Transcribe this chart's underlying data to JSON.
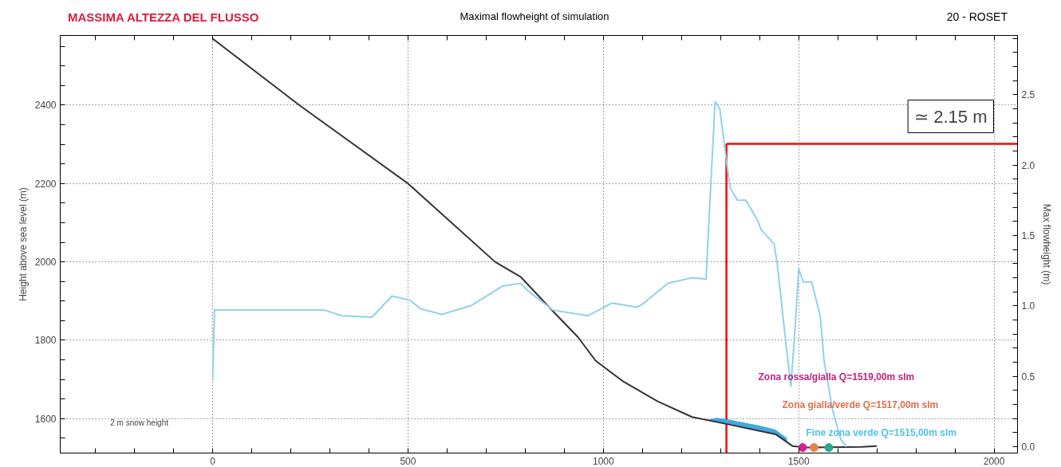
{
  "chart_data": {
    "type": "line",
    "title": "MASSIMA ALTEZZA DEL FLUSSO",
    "subtitle": "Maximal flowheight of simulation",
    "ylabel": "Height above sea level (m)",
    "y2label": "Max flowheight (m)",
    "xlim": [
      -390,
      2060
    ],
    "xticks": [
      {
        "value": -300,
        "label": null
      },
      {
        "value": -200,
        "label": null
      },
      {
        "value": -100,
        "label": null
      },
      0,
      {
        "value": 100,
        "label": null
      },
      {
        "value": 200,
        "label": null
      },
      {
        "value": 300,
        "label": null
      },
      {
        "value": 400,
        "label": null
      },
      500,
      {
        "value": 600,
        "label": null
      },
      {
        "value": 700,
        "label": null
      },
      {
        "value": 800,
        "label": null
      },
      {
        "value": 900,
        "label": null
      },
      1000,
      {
        "value": 1100,
        "label": null
      },
      {
        "value": 1200,
        "label": null
      },
      {
        "value": 1300,
        "label": null
      },
      {
        "value": 1400,
        "label": null
      },
      1500,
      {
        "value": 1600,
        "label": null
      },
      {
        "value": 1700,
        "label": null
      },
      {
        "value": 1800,
        "label": null
      },
      {
        "value": 1900,
        "label": null
      },
      2000
    ],
    "ylim": [
      1512,
      2578
    ],
    "yticks": [
      {
        "value": 1550,
        "label": null
      },
      1600,
      {
        "value": 1650,
        "label": null
      },
      {
        "value": 1700,
        "label": null
      },
      {
        "value": 1750,
        "label": null
      },
      1800,
      {
        "value": 1850,
        "label": null
      },
      {
        "value": 1900,
        "label": null
      },
      {
        "value": 1950,
        "label": null
      },
      2000,
      {
        "value": 2050,
        "label": null
      },
      {
        "value": 2100,
        "label": null
      },
      {
        "value": 2150,
        "label": null
      },
      2200,
      {
        "value": 2250,
        "label": null
      },
      {
        "value": 2300,
        "label": null
      },
      {
        "value": 2350,
        "label": null
      },
      2400,
      {
        "value": 2450,
        "label": null
      },
      {
        "value": 2500,
        "label": null
      },
      {
        "value": 2550,
        "label": null
      }
    ],
    "y2lim": [
      -0.045,
      2.92
    ],
    "y2ticks": [
      {
        "value": 0,
        "label": "0.0"
      },
      {
        "value": 0.1,
        "label": null
      },
      {
        "value": 0.2,
        "label": null
      },
      {
        "value": 0.3,
        "label": null
      },
      {
        "value": 0.4,
        "label": null
      },
      0.5,
      {
        "value": 0.6,
        "label": null
      },
      {
        "value": 0.7,
        "label": null
      },
      {
        "value": 0.8,
        "label": null
      },
      {
        "value": 0.9,
        "label": null
      },
      {
        "value": 1,
        "label": "1.0"
      },
      {
        "value": 1.1,
        "label": null
      },
      {
        "value": 1.2,
        "label": null
      },
      {
        "value": 1.3,
        "label": null
      },
      {
        "value": 1.4,
        "label": null
      },
      1.5,
      {
        "value": 1.6,
        "label": null
      },
      {
        "value": 1.7,
        "label": null
      },
      {
        "value": 1.8,
        "label": null
      },
      {
        "value": 1.9,
        "label": null
      },
      {
        "value": 2,
        "label": "2.0"
      },
      {
        "value": 2.1,
        "label": null
      },
      {
        "value": 2.2,
        "label": null
      },
      {
        "value": 2.3,
        "label": null
      },
      {
        "value": 2.4,
        "label": null
      },
      2.5,
      {
        "value": 2.6,
        "label": null
      },
      {
        "value": 2.7,
        "label": null
      },
      {
        "value": 2.8,
        "label": null
      },
      {
        "value": 2.9,
        "label": null
      }
    ],
    "grid": true,
    "series": [
      {
        "color": "#333333",
        "x": [
          0,
          222,
          500,
          723,
          788,
          871,
          935,
          980,
          1049,
          1139,
          1227,
          1316,
          1441,
          1484,
          1520,
          1661,
          1700
        ],
        "values": [
          2570,
          2400,
          2200,
          2000,
          1962,
          1874,
          1808,
          1748,
          1696,
          1644,
          1604,
          1586,
          1560,
          1530,
          1526,
          1528,
          1530
        ]
      },
      {
        "type": "area",
        "color": "#3fa9e0",
        "x": [
          1263,
          1290,
          1320,
          1360,
          1400,
          1440,
          1470
        ],
        "values": [
          1596,
          1602,
          1598,
          1590,
          1582,
          1572,
          1550
        ]
      },
      {
        "type": "line",
        "axis": "y2",
        "color": "#8fd3ea",
        "x": [
          0,
          5,
          286,
          331,
          408,
          459,
          505,
          532,
          586,
          660,
          696,
          741,
          788,
          810,
          871,
          961,
          988,
          1022,
          1086,
          1104,
          1165,
          1227,
          1263,
          1269,
          1286,
          1298,
          1324,
          1343,
          1365,
          1396,
          1404,
          1437,
          1445,
          1467,
          1480,
          1490,
          1500,
          1512,
          1533,
          1555,
          1565,
          1586,
          1608,
          1622
        ],
        "values": [
          0.47,
          0.97,
          0.97,
          0.93,
          0.92,
          1.07,
          1.04,
          0.98,
          0.94,
          1.0,
          1.06,
          1.14,
          1.16,
          1.1,
          0.97,
          0.93,
          0.97,
          1.02,
          0.99,
          1.02,
          1.16,
          1.2,
          1.19,
          1.54,
          2.45,
          2.4,
          1.84,
          1.75,
          1.75,
          1.6,
          1.54,
          1.44,
          1.3,
          0.74,
          0.43,
          0.81,
          1.26,
          1.17,
          1.17,
          0.93,
          0.61,
          0.27,
          0.05,
          0.0
        ]
      },
      {
        "type": "scatter",
        "marker": "circle",
        "color": "#d6218a",
        "x": [
          1510
        ],
        "values": [
          1526
        ]
      },
      {
        "type": "scatter",
        "marker": "circle",
        "color": "#e8804a",
        "x": [
          1539
        ],
        "values": [
          1526
        ]
      },
      {
        "type": "scatter",
        "marker": "circle",
        "color": "#2aa88a",
        "x": [
          1577
        ],
        "values": [
          1526
        ]
      }
    ],
    "ref_lines": [
      {
        "axis": "x",
        "value": 1315,
        "color": "#ff0000"
      },
      {
        "axis": "y2",
        "value": 2.15,
        "label": "≃ 2.15 m",
        "color": "#ff0000"
      }
    ],
    "annotations": [
      "20 - ROSET",
      "2 m snow height",
      "Zona rossa/gialla Q=1519,00m slm",
      "Zona gialla/verde Q=1517,00m slm",
      "Fine zona verde Q=1515,00m slm"
    ]
  }
}
